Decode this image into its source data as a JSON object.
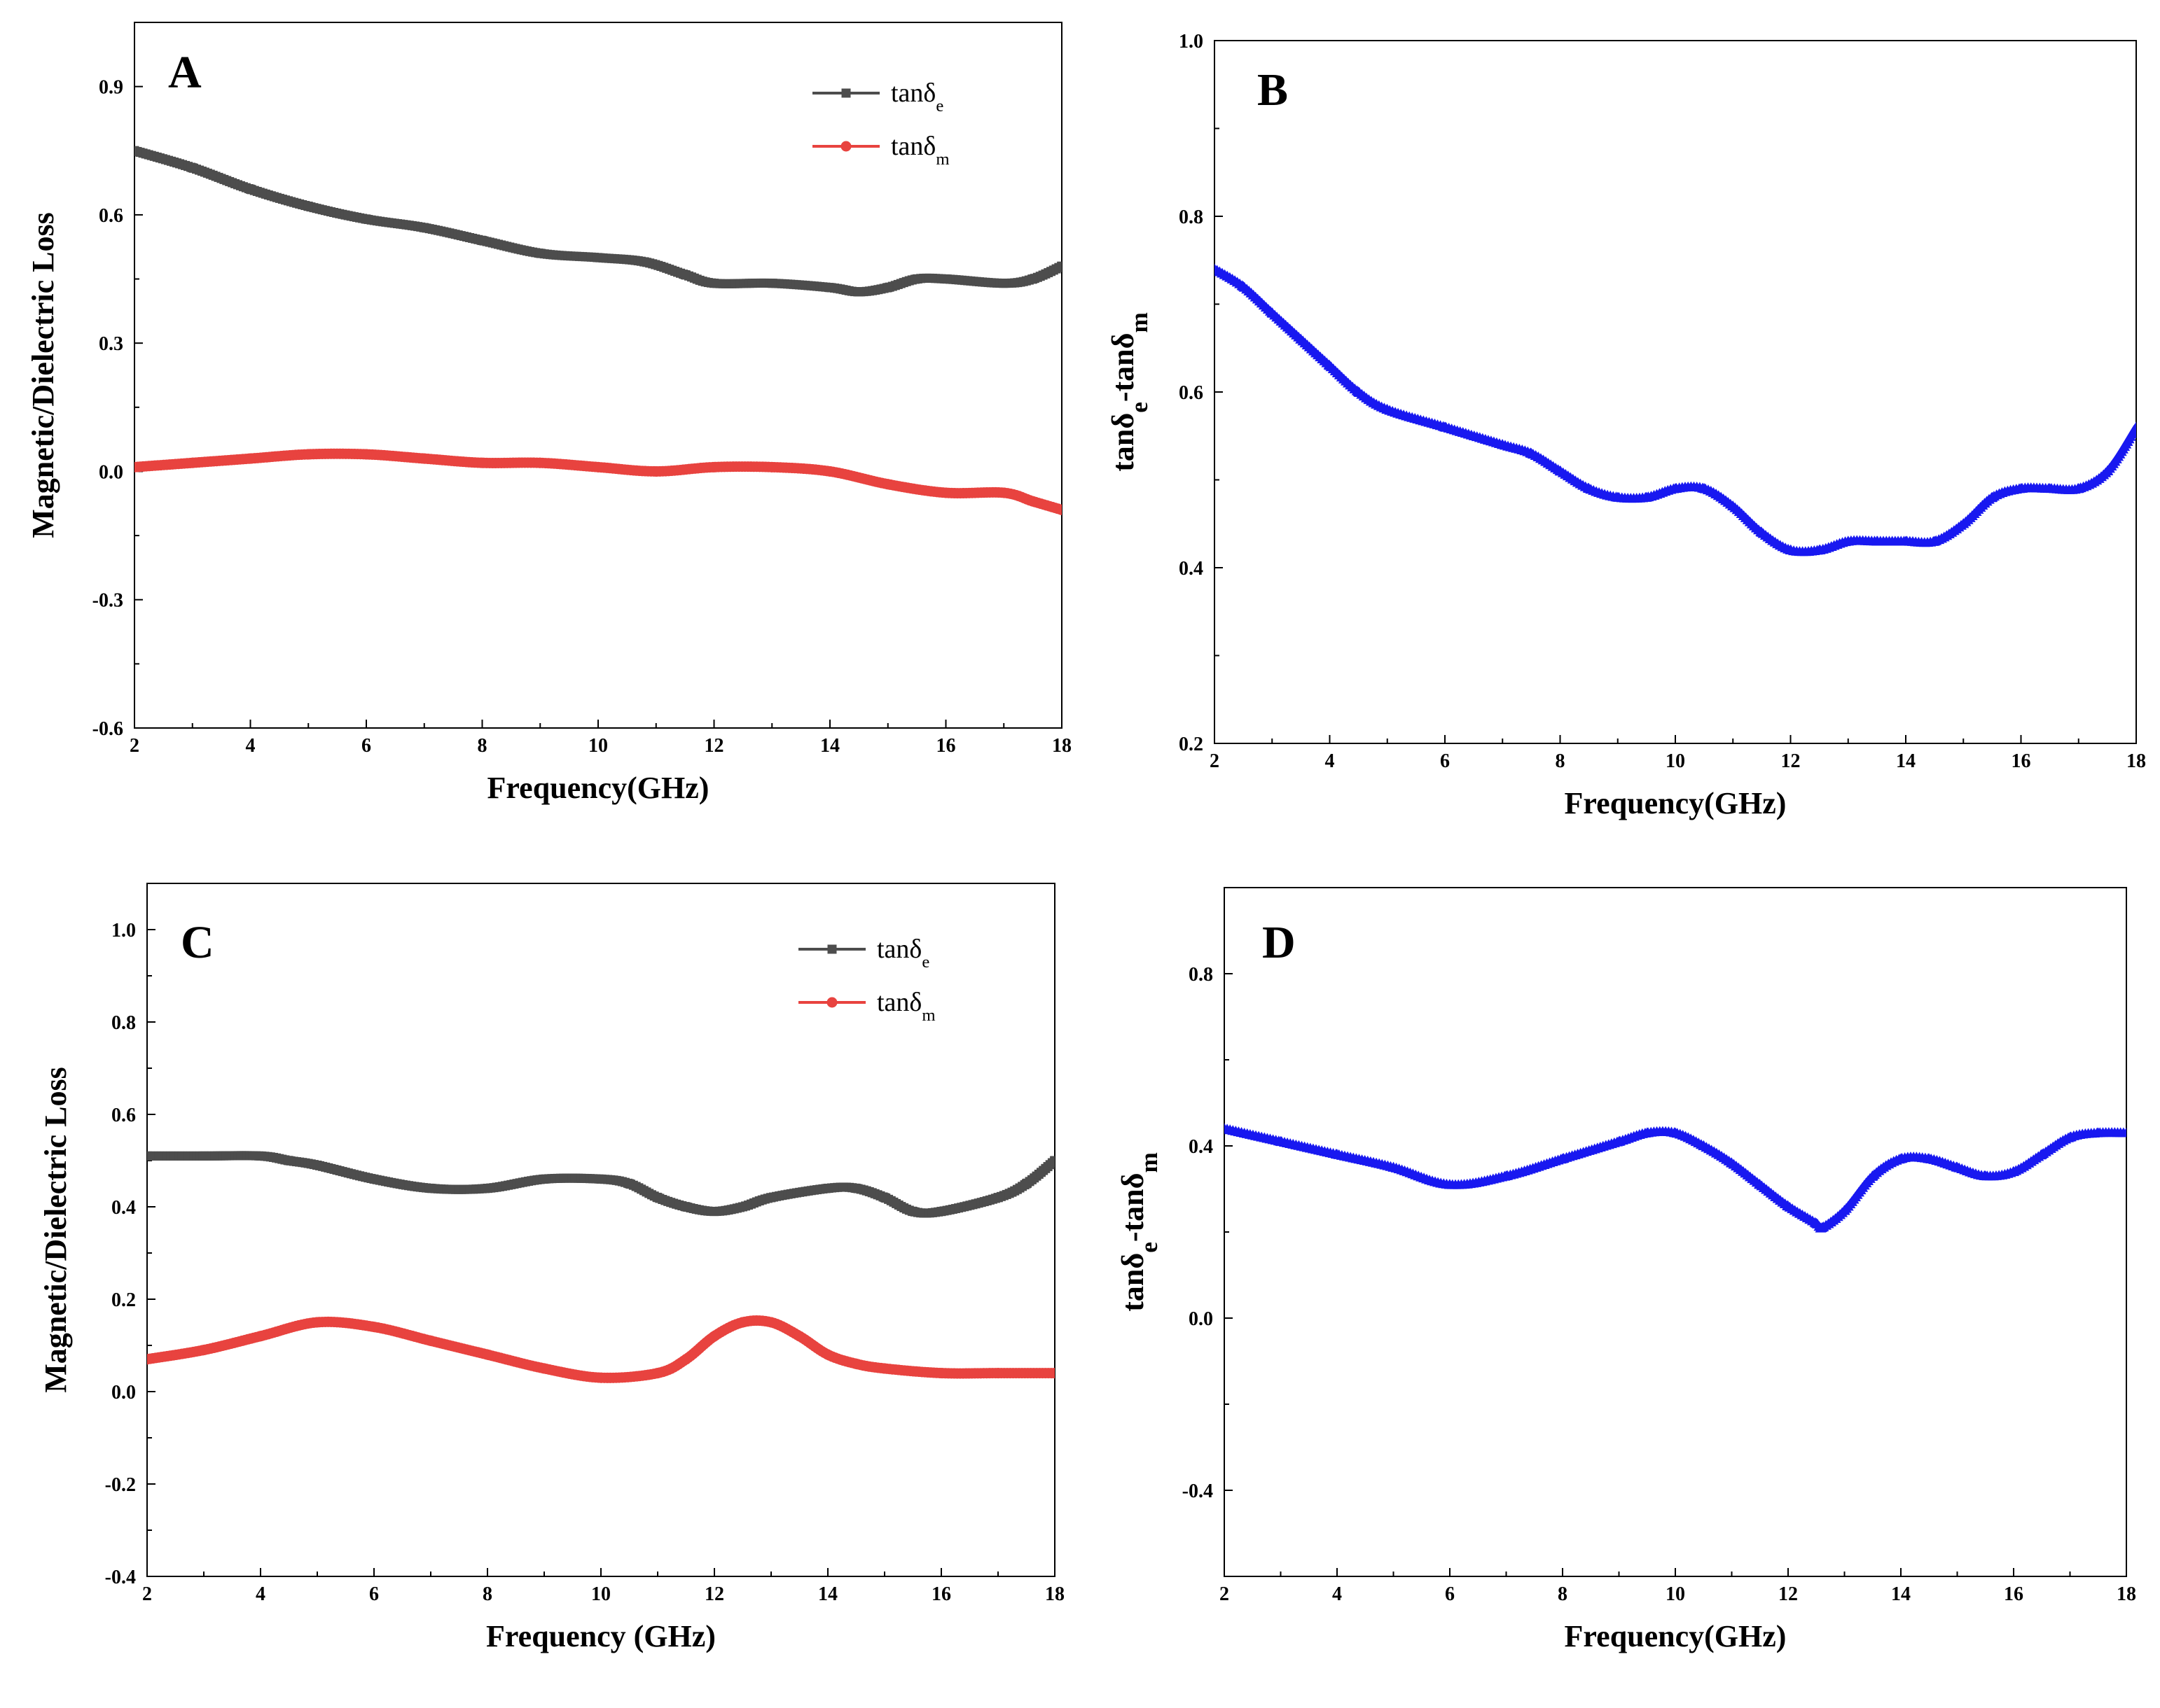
{
  "chart_data": [
    {
      "id": "A",
      "type": "line",
      "panel_label": "A",
      "xlabel": "Frequency(GHz)",
      "ylabel": "Magnetic/Dielectric Loss",
      "xlim": [
        2,
        18
      ],
      "ylim": [
        -0.6,
        1.05
      ],
      "xticks": [
        2,
        4,
        6,
        8,
        10,
        12,
        14,
        16,
        18
      ],
      "yticks": [
        -0.6,
        -0.3,
        0.0,
        0.3,
        0.6,
        0.9
      ],
      "ytick_labels": [
        "-0.6",
        "-0.3",
        "0.0",
        "0.3",
        "0.6",
        "0.9"
      ],
      "legend": "top-right",
      "series": [
        {
          "name": "tanδe",
          "legend_base": "tanδ",
          "legend_sub": "e",
          "color": "#4d4d4d",
          "marker": "square",
          "x": [
            2,
            3,
            4,
            5,
            6,
            7,
            8,
            9,
            10,
            10.8,
            11.5,
            12,
            13,
            14,
            14.5,
            15,
            15.5,
            16,
            17,
            17.5,
            18
          ],
          "y": [
            0.75,
            0.71,
            0.66,
            0.62,
            0.59,
            0.57,
            0.54,
            0.51,
            0.5,
            0.49,
            0.46,
            0.44,
            0.44,
            0.43,
            0.42,
            0.43,
            0.45,
            0.45,
            0.44,
            0.45,
            0.48
          ]
        },
        {
          "name": "tanδm",
          "legend_base": "tanδ",
          "legend_sub": "m",
          "color": "#e8433f",
          "marker": "circle",
          "x": [
            2,
            3,
            4,
            5,
            6,
            7,
            8,
            9,
            10,
            11,
            12,
            13,
            14,
            15,
            16,
            17,
            17.5,
            18
          ],
          "y": [
            0.01,
            0.02,
            0.03,
            0.04,
            0.04,
            0.03,
            0.02,
            0.02,
            0.01,
            0.0,
            0.01,
            0.01,
            0.0,
            -0.03,
            -0.05,
            -0.05,
            -0.07,
            -0.09
          ]
        }
      ]
    },
    {
      "id": "B",
      "type": "line",
      "panel_label": "B",
      "xlabel": "Frequency(GHz)",
      "ylabel": "tanδe-tanδm",
      "ylabel_parts": [
        "tanδ",
        "e",
        "-tanδ",
        "m"
      ],
      "xlim": [
        2,
        18
      ],
      "ylim": [
        0.2,
        1.0
      ],
      "xticks": [
        2,
        4,
        6,
        8,
        10,
        12,
        14,
        16,
        18
      ],
      "yticks": [
        0.2,
        0.4,
        0.6,
        0.8,
        1.0
      ],
      "ytick_labels": [
        "0.2",
        "0.4",
        "0.6",
        "0.8",
        "1.0"
      ],
      "series": [
        {
          "name": "tanδe-tanδm",
          "color": "#1818f0",
          "marker": "triangle",
          "x": [
            2,
            2.5,
            3,
            3.5,
            4,
            4.5,
            5,
            6,
            7,
            7.5,
            8,
            8.5,
            9,
            9.5,
            10,
            10.5,
            11,
            11.5,
            12,
            12.5,
            13,
            13.5,
            14,
            14.5,
            15,
            15.5,
            16,
            16.5,
            17,
            17.5,
            18
          ],
          "y": [
            0.74,
            0.72,
            0.69,
            0.66,
            0.63,
            0.6,
            0.58,
            0.56,
            0.54,
            0.53,
            0.51,
            0.49,
            0.48,
            0.48,
            0.49,
            0.49,
            0.47,
            0.44,
            0.42,
            0.42,
            0.43,
            0.43,
            0.43,
            0.43,
            0.45,
            0.48,
            0.49,
            0.49,
            0.49,
            0.51,
            0.56
          ]
        }
      ]
    },
    {
      "id": "C",
      "type": "line",
      "panel_label": "C",
      "xlabel": "Frequency (GHz)",
      "ylabel": "Magnetic/Dielectric Loss",
      "xlim": [
        2,
        18
      ],
      "ylim": [
        -0.4,
        1.1
      ],
      "xticks": [
        2,
        4,
        6,
        8,
        10,
        12,
        14,
        16,
        18
      ],
      "yticks": [
        -0.4,
        -0.2,
        0.0,
        0.2,
        0.4,
        0.6,
        0.8,
        1.0
      ],
      "ytick_labels": [
        "-0.4",
        "-0.2",
        "0.0",
        "0.2",
        "0.4",
        "0.6",
        "0.8",
        "1.0"
      ],
      "legend": "top-right",
      "series": [
        {
          "name": "tanδe",
          "legend_base": "tanδ",
          "legend_sub": "e",
          "color": "#4d4d4d",
          "marker": "square",
          "x": [
            2,
            3,
            4,
            4.5,
            5,
            6,
            7,
            8,
            9,
            10,
            10.5,
            11,
            11.5,
            12,
            12.5,
            13,
            14,
            14.5,
            15,
            15.5,
            16,
            17,
            17.5,
            18
          ],
          "y": [
            0.51,
            0.51,
            0.51,
            0.5,
            0.49,
            0.46,
            0.44,
            0.44,
            0.46,
            0.46,
            0.45,
            0.42,
            0.4,
            0.39,
            0.4,
            0.42,
            0.44,
            0.44,
            0.42,
            0.39,
            0.39,
            0.42,
            0.45,
            0.5
          ]
        },
        {
          "name": "tanδm",
          "legend_base": "tanδ",
          "legend_sub": "m",
          "color": "#e8433f",
          "marker": "circle",
          "x": [
            2,
            3,
            4,
            5,
            6,
            7,
            8,
            9,
            10,
            11,
            11.5,
            12,
            12.5,
            13,
            13.5,
            14,
            14.5,
            15,
            16,
            17,
            18
          ],
          "y": [
            0.07,
            0.09,
            0.12,
            0.15,
            0.14,
            0.11,
            0.08,
            0.05,
            0.03,
            0.04,
            0.07,
            0.12,
            0.15,
            0.15,
            0.12,
            0.08,
            0.06,
            0.05,
            0.04,
            0.04,
            0.04
          ]
        }
      ]
    },
    {
      "id": "D",
      "type": "line",
      "panel_label": "D",
      "xlabel": "Frequency(GHz)",
      "ylabel": "tanδe-tanδm",
      "ylabel_parts": [
        "tanδ",
        "e",
        "-tanδ",
        "m"
      ],
      "xlim": [
        2,
        18
      ],
      "ylim": [
        -0.6,
        1.0
      ],
      "xticks": [
        2,
        4,
        6,
        8,
        10,
        12,
        14,
        16,
        18
      ],
      "yticks": [
        -0.4,
        0.0,
        0.4,
        0.8
      ],
      "ytick_labels": [
        "-0.4",
        "0.0",
        "0.4",
        "0.8"
      ],
      "series": [
        {
          "name": "tanδe-tanδm",
          "color": "#1818f0",
          "marker": "triangle",
          "x": [
            2,
            3,
            4,
            5,
            6,
            7,
            8,
            9,
            9.5,
            10,
            10.5,
            11,
            11.5,
            12,
            12.5,
            12.6,
            13,
            13.5,
            14,
            14.5,
            15,
            15.5,
            16,
            16.5,
            17,
            17.5,
            18
          ],
          "y": [
            0.44,
            0.41,
            0.38,
            0.35,
            0.31,
            0.33,
            0.37,
            0.41,
            0.43,
            0.43,
            0.4,
            0.36,
            0.31,
            0.26,
            0.22,
            0.21,
            0.25,
            0.33,
            0.37,
            0.37,
            0.35,
            0.33,
            0.34,
            0.38,
            0.42,
            0.43,
            0.43
          ]
        }
      ]
    }
  ]
}
